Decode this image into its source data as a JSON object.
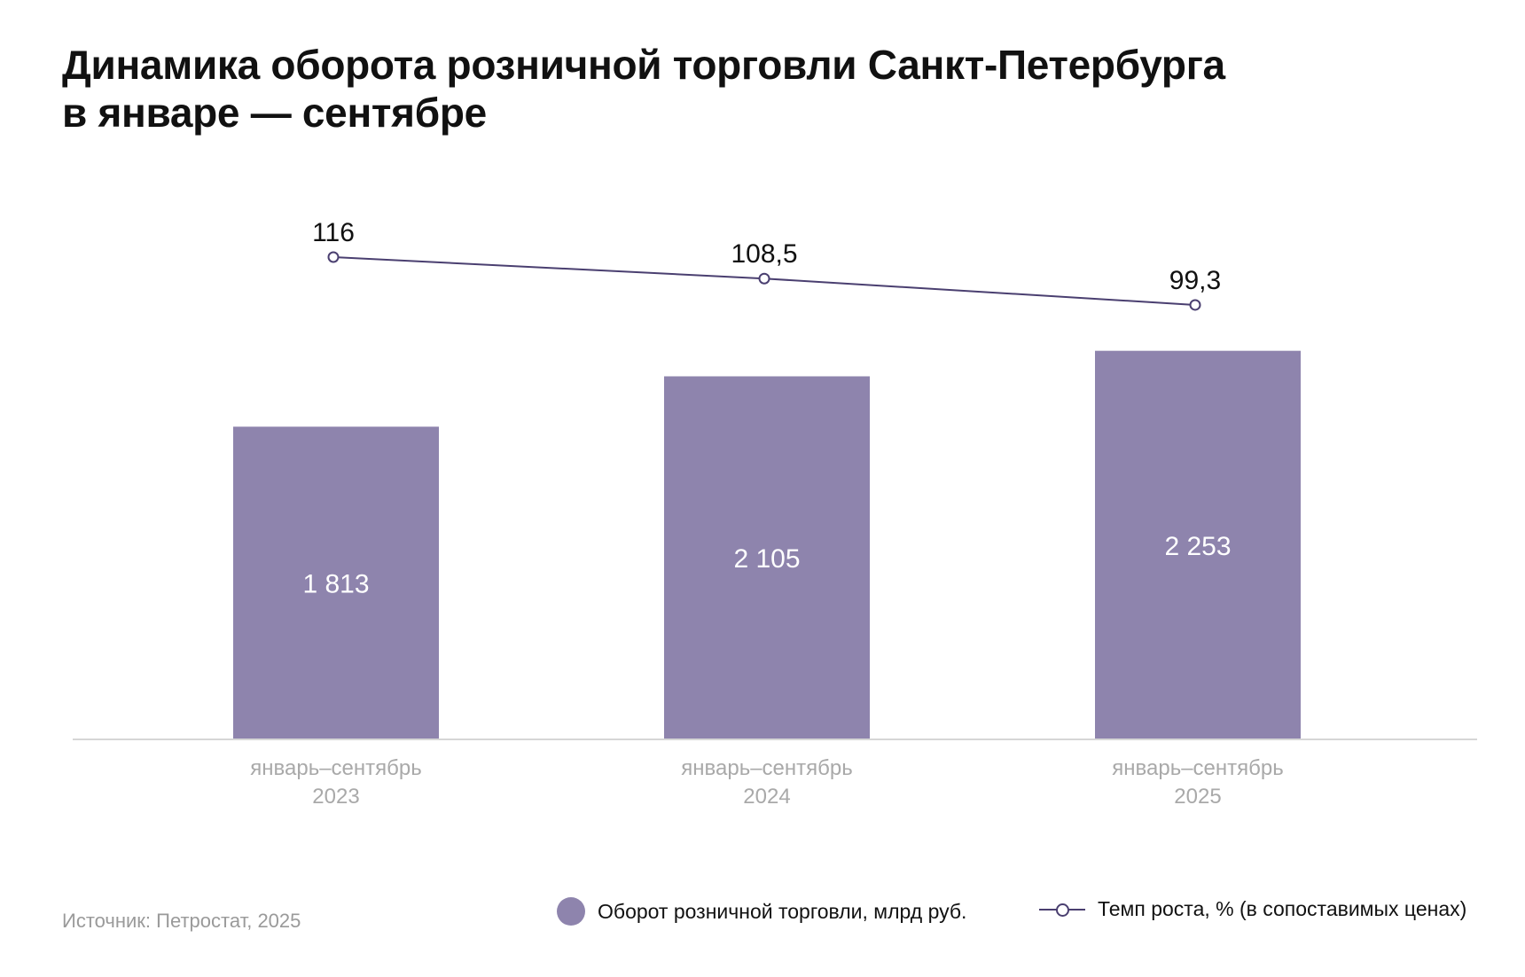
{
  "chart_data": {
    "type": "bar",
    "title_lines": [
      "Динамика оборота розничной торговли Санкт-Петербурга",
      "в январе — сентябре"
    ],
    "categories": [
      {
        "line1": "январь–сентябрь",
        "line2": "2023"
      },
      {
        "line1": "январь–сентябрь",
        "line2": "2024"
      },
      {
        "line1": "январь–сентябрь",
        "line2": "2025"
      }
    ],
    "series": [
      {
        "name": "Оборот розничной торговли, млрд руб.",
        "type": "bar",
        "values": [
          1813,
          2105,
          2253
        ],
        "labels": [
          "1 813",
          "2 105",
          "2 253"
        ],
        "color": "#8e84ad"
      },
      {
        "name": "Темп роста, % (в сопоставимых ценах)",
        "type": "line",
        "values": [
          116,
          108.5,
          99.3
        ],
        "labels": [
          "116",
          "108,5",
          "99,3"
        ],
        "color": "#4a3f70"
      }
    ],
    "legend": "bottom-right",
    "grid": false
  },
  "source": "Источник: Петростат, 2025",
  "colors": {
    "axis": "#d6d6d6",
    "category_text": "#a9a9a9"
  }
}
